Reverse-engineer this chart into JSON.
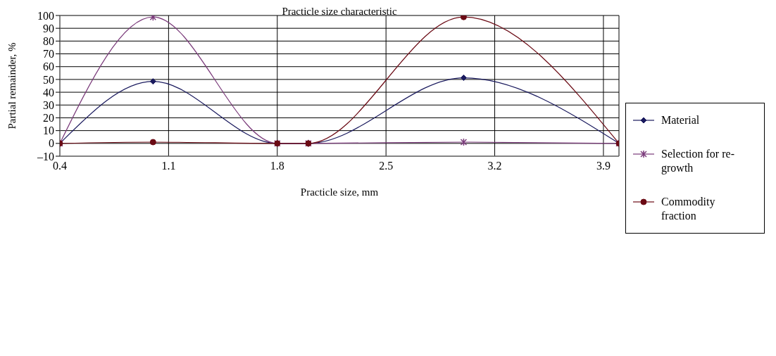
{
  "chart_data": {
    "type": "line",
    "title": "Practicle size characteristic",
    "xlabel": "Practicle size, mm",
    "ylabel": "Partial remainder, %",
    "x": [
      0.4,
      1.0,
      1.8,
      2.0,
      3.0,
      4.0
    ],
    "series": [
      {
        "name": "Material",
        "color": "#1a1a5e",
        "marker": "diamond",
        "values": [
          0,
          48.5,
          0,
          0,
          51.3,
          0
        ]
      },
      {
        "name": "Selection for re-growth",
        "color": "#7a3a7a",
        "marker": "cross",
        "values": [
          0,
          98.8,
          0,
          0,
          1,
          0
        ]
      },
      {
        "name": "Commodity fraction",
        "color": "#6b0a14",
        "marker": "circle",
        "values": [
          0,
          1,
          0,
          0,
          98.8,
          0
        ]
      }
    ],
    "xlim": [
      0.4,
      4.0
    ],
    "xticks": [
      0.4,
      1.1,
      1.8,
      2.5,
      3.2,
      3.9
    ],
    "ylim": [
      -10,
      100
    ],
    "yticks": [
      {
        "value": -10,
        "label": "–10"
      },
      0,
      10,
      20,
      30,
      40,
      50,
      60,
      70,
      80,
      90,
      100
    ],
    "grid": true,
    "legend": "right"
  }
}
